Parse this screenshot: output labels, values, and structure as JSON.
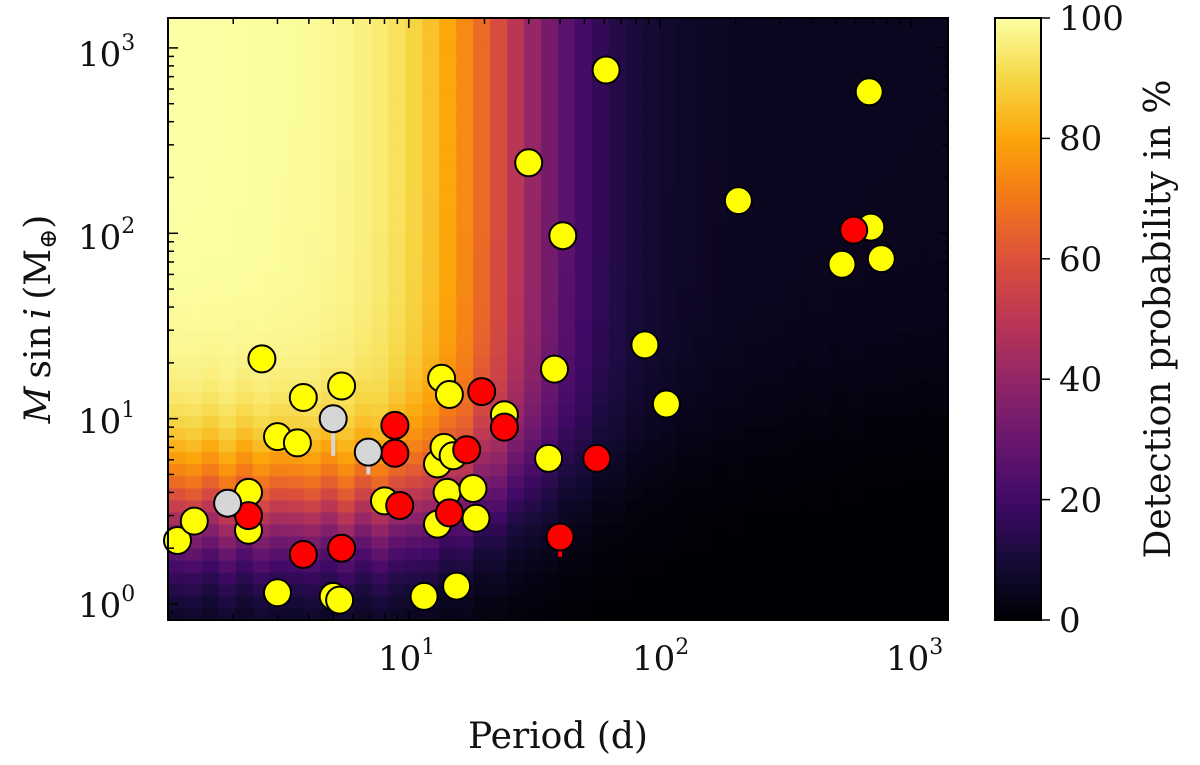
{
  "chart_data": {
    "type": "scatter",
    "xlabel": "Period (d)",
    "ylabel": "M sin i (M⊕)",
    "ylabel_parts": {
      "m": "M",
      "sin": "sin",
      "i": "i",
      "open": "(M",
      "sub": "⊕",
      "close": ")"
    },
    "xscale": "log",
    "yscale": "log",
    "xlim": [
      1.1,
      1400
    ],
    "ylim": [
      0.82,
      1450
    ],
    "x_ticks": [
      {
        "value": 10,
        "base": "10",
        "exp": "1"
      },
      {
        "value": 100,
        "base": "10",
        "exp": "2"
      },
      {
        "value": 1000,
        "base": "10",
        "exp": "3"
      }
    ],
    "y_ticks": [
      {
        "value": 1,
        "base": "10",
        "exp": "0"
      },
      {
        "value": 10,
        "base": "10",
        "exp": "1"
      },
      {
        "value": 100,
        "base": "10",
        "exp": "2"
      },
      {
        "value": 1000,
        "base": "10",
        "exp": "3"
      }
    ],
    "colorbar": {
      "label": "Detection probability in %",
      "range": [
        0,
        100
      ],
      "ticks": [
        "0",
        "20",
        "40",
        "60",
        "80",
        "100"
      ],
      "tick_values": [
        0,
        20,
        40,
        60,
        80,
        100
      ],
      "colormap": "inferno"
    },
    "heatmap_description": "detection probability (%) as function of period and minimum mass",
    "series": [
      {
        "name": "yellow planets",
        "color": "#ffff00",
        "points": [
          [
            1.2,
            2.2
          ],
          [
            1.4,
            2.8
          ],
          [
            2.3,
            4.0
          ],
          [
            2.3,
            2.5
          ],
          [
            2.6,
            21
          ],
          [
            3.0,
            8.0
          ],
          [
            3.0,
            1.15
          ],
          [
            3.6,
            7.4
          ],
          [
            3.8,
            13
          ],
          [
            5.0,
            1.1
          ],
          [
            5.3,
            1.05
          ],
          [
            5.4,
            15
          ],
          [
            8.0,
            3.6
          ],
          [
            11.5,
            1.1
          ],
          [
            13.0,
            2.7
          ],
          [
            13.0,
            5.7
          ],
          [
            13.5,
            16.5
          ],
          [
            13.8,
            7.0
          ],
          [
            14.2,
            4.0
          ],
          [
            14.5,
            13.5
          ],
          [
            15.0,
            6.3
          ],
          [
            15.5,
            1.25
          ],
          [
            18.0,
            4.2
          ],
          [
            18.5,
            2.9
          ],
          [
            24.0,
            10.5
          ],
          [
            30.0,
            240
          ],
          [
            36.0,
            6.1
          ],
          [
            38.0,
            18.5
          ],
          [
            41.0,
            97
          ],
          [
            61.0,
            760
          ],
          [
            87.0,
            25
          ],
          [
            106.0,
            12
          ],
          [
            205.0,
            150
          ],
          [
            530.0,
            68
          ],
          [
            680.0,
            580
          ],
          [
            690.0,
            108
          ],
          [
            760.0,
            73
          ]
        ]
      },
      {
        "name": "red planets",
        "color": "#ff0000",
        "points": [
          [
            2.3,
            3.0
          ],
          [
            3.8,
            1.85
          ],
          [
            5.4,
            2.0
          ],
          [
            8.8,
            9.2
          ],
          [
            8.8,
            6.5
          ],
          [
            9.2,
            3.4
          ],
          [
            14.5,
            3.1
          ],
          [
            17.0,
            6.8
          ],
          [
            19.5,
            14
          ],
          [
            24.0,
            9.0
          ],
          [
            40.0,
            2.3
          ],
          [
            56.0,
            6.1
          ],
          [
            590.0,
            104
          ]
        ]
      },
      {
        "name": "grey planets",
        "color": "#d6d6d6",
        "points": [
          [
            1.9,
            3.5
          ],
          [
            5.0,
            10.0
          ],
          [
            6.9,
            6.6
          ]
        ]
      }
    ]
  }
}
